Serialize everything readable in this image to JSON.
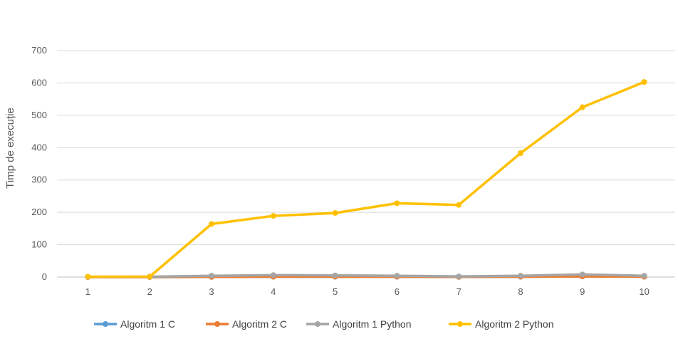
{
  "chart_data": {
    "type": "line",
    "title": "",
    "xlabel": "",
    "ylabel": "Timp de execuție",
    "categories": [
      "1",
      "2",
      "3",
      "4",
      "5",
      "6",
      "7",
      "8",
      "9",
      "10"
    ],
    "ylim": [
      0,
      700
    ],
    "yticks": [
      0,
      100,
      200,
      300,
      400,
      500,
      600,
      700
    ],
    "grid": true,
    "legend_position": "bottom",
    "series": [
      {
        "name": "Algoritm 1 C",
        "color": "#5B9BD5",
        "values": [
          0.1,
          0.1,
          0.5,
          1,
          1,
          1,
          0.5,
          1,
          2,
          1
        ]
      },
      {
        "name": "Algoritm 2 C",
        "color": "#ED7D31",
        "values": [
          0.1,
          0.1,
          0.5,
          1,
          1,
          1,
          0.5,
          1,
          2,
          1
        ]
      },
      {
        "name": "Algoritm 1 Python",
        "color": "#A5A5A5",
        "values": [
          0.5,
          1,
          4,
          6,
          5,
          4,
          2,
          4,
          8,
          4
        ]
      },
      {
        "name": "Algoritm 2 Python",
        "color": "#FFC000",
        "values": [
          1,
          1,
          164,
          189,
          198,
          228,
          223,
          383,
          525,
          603
        ]
      }
    ]
  }
}
